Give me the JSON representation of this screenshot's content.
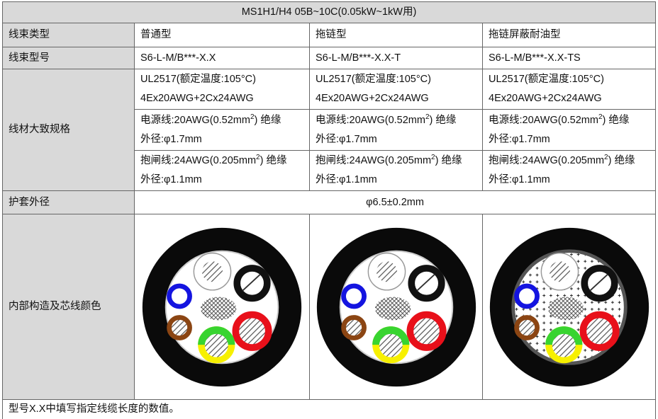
{
  "header": {
    "title": "MS1H1/H4 05B~10C(0.05kW~1kW用)"
  },
  "table": {
    "rows": [
      [
        "线束类型",
        "普通型",
        "拖链型",
        "拖链屏蔽耐油型"
      ],
      [
        "线束型号",
        "S6-L-M/B***-X.X",
        "S6-L-M/B***-X.X-T",
        "S6-L-M/B***-X.X-TS"
      ]
    ]
  },
  "spec": {
    "label": "线材大致规格",
    "columns": [
      [
        [
          {
            "text": "UL2517(额定温度:105°C)"
          },
          {
            "text": "4Ex20AWG+2Cx24AWG"
          }
        ],
        [
          {
            "before": "电源线:20AWG(0.52mm",
            "sup": "2",
            "after": ") 绝缘"
          },
          {
            "text": "外径:φ1.7mm"
          }
        ],
        [
          {
            "before": "抱闸线:24AWG(0.205mm",
            "sup": "2",
            "after": ") 绝缘"
          },
          {
            "text": "外径:φ1.1mm"
          }
        ]
      ],
      [
        [
          {
            "text": "UL2517(额定温度:105°C)"
          },
          {
            "text": "4Ex20AWG+2Cx24AWG"
          }
        ],
        [
          {
            "before": "电源线:20AWG(0.52mm",
            "sup": "2",
            "after": ") 绝缘"
          },
          {
            "text": "外径:φ1.7mm"
          }
        ],
        [
          {
            "before": "抱闸线:24AWG(0.205mm",
            "sup": "2",
            "after": ") 绝缘"
          },
          {
            "text": "外径:φ1.1mm"
          }
        ]
      ],
      [
        [
          {
            "text": "UL2517(额定温度:105°C)"
          },
          {
            "text": "4Ex20AWG+2Cx24AWG"
          }
        ],
        [
          {
            "before": "电源线:20AWG(0.52mm",
            "sup": "2",
            "after": ") 绝缘"
          },
          {
            "text": "外径:φ1.7mm"
          }
        ],
        [
          {
            "before": "抱闸线:24AWG(0.205mm",
            "sup": "2",
            "after": ") 绝缘"
          },
          {
            "text": "外径:φ1.1mm"
          }
        ]
      ]
    ]
  },
  "jacket": {
    "label": "护套外径",
    "value": "φ6.5±0.2mm"
  },
  "structure": {
    "label": "内部构造及芯线颜色"
  },
  "note": "型号X.X中填写指定线缆长度的数值。"
}
